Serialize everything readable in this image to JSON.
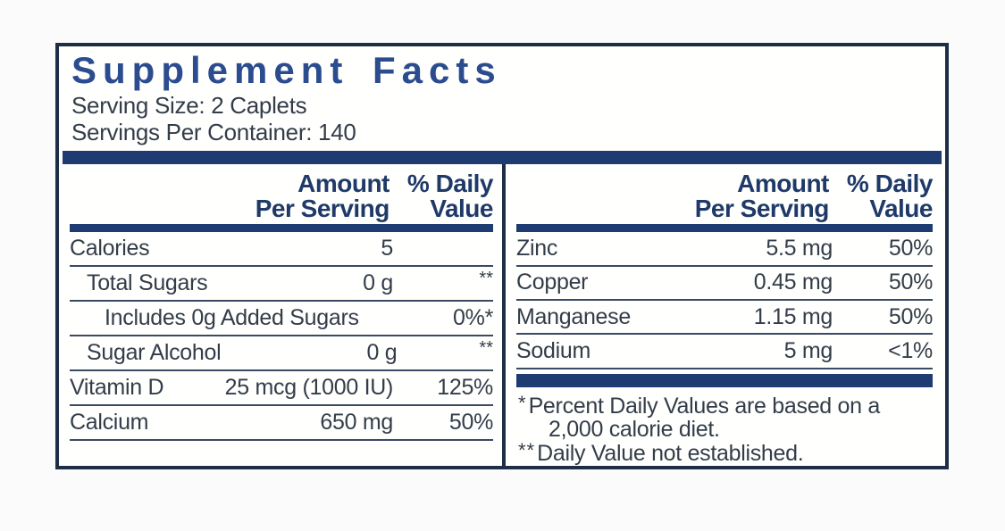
{
  "label": {
    "title": "Supplement Facts",
    "serving_size": "Serving Size: 2 Caplets",
    "servings_per_container": "Servings Per Container: 140",
    "column_headers": {
      "amount_line1": "Amount",
      "amount_line2": "Per Serving",
      "dv_line1": "% Daily",
      "dv_line2": "Value"
    },
    "left_rows": [
      {
        "name": "Calories",
        "amount": "5",
        "dv": ""
      },
      {
        "name": "Total Sugars",
        "amount": "0 g",
        "dv": "**"
      },
      {
        "name": "Includes 0g Added Sugars",
        "amount": "",
        "dv": "0%*"
      },
      {
        "name": "Sugar Alcohol",
        "amount": "0 g",
        "dv": "**"
      },
      {
        "name": "Vitamin D",
        "amount": "25 mcg (1000 IU)",
        "dv": "125%"
      },
      {
        "name": "Calcium",
        "amount": "650 mg",
        "dv": "50%"
      }
    ],
    "right_rows": [
      {
        "name": "Zinc",
        "amount": "5.5 mg",
        "dv": "50%"
      },
      {
        "name": "Copper",
        "amount": "0.45 mg",
        "dv": "50%"
      },
      {
        "name": "Manganese",
        "amount": "1.15 mg",
        "dv": "50%"
      },
      {
        "name": "Sodium",
        "amount": "5 mg",
        "dv": "<1%"
      }
    ],
    "footnotes": [
      {
        "marker": "*",
        "text": "Percent Daily Values are based on a 2,000 calorie diet."
      },
      {
        "marker": "**",
        "text": "Daily Value not established."
      }
    ],
    "colors": {
      "title_blue": "#2b4c8e",
      "bar_navy": "#1e3c72",
      "header_navy": "#1f3a68",
      "text_dark": "#333d49",
      "line_navy": "#3a4a63",
      "border_navy": "#1d2e46"
    }
  }
}
